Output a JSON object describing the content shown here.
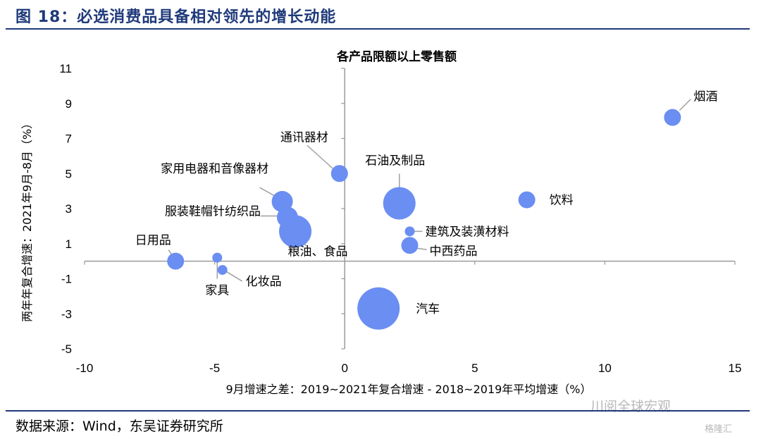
{
  "figure": {
    "title": "图 18：必选消费品具备相对领先的增长动能",
    "source": "数据来源：Wind，东吴证券研究所",
    "watermark": "川阅全球宏观",
    "corner_logo": "格隆汇"
  },
  "colors": {
    "bubble": "#6a8ef2",
    "frame": "#1f3a7a",
    "leader": "#a0a0a0"
  },
  "chart_data": {
    "type": "scatter",
    "title": "各产品限额以上零售额",
    "xlabel": "9月增速之差：2019~2021年复合增速 - 2018~2019年平均增速（%）",
    "ylabel": "两年年复合增速：2021年9月-8月（%）",
    "xlim": [
      -10,
      15
    ],
    "ylim": [
      -5,
      11
    ],
    "xticks": [
      -10,
      -5,
      0,
      5,
      10,
      15
    ],
    "yticks": [
      11,
      9,
      7,
      5,
      3,
      1,
      -1,
      -3,
      -5
    ],
    "points": [
      {
        "name": "烟酒",
        "x": 12.6,
        "y": 8.2,
        "size": "small"
      },
      {
        "name": "饮料",
        "x": 7.0,
        "y": 3.5,
        "size": "small"
      },
      {
        "name": "石油及制品",
        "x": 2.1,
        "y": 3.3,
        "size": "large"
      },
      {
        "name": "通讯器材",
        "x": -0.2,
        "y": 5.0,
        "size": "small"
      },
      {
        "name": "家用电器和音像器材",
        "x": -2.4,
        "y": 3.4,
        "size": "medium"
      },
      {
        "name": "服装鞋帽针纺织品",
        "x": -2.2,
        "y": 2.5,
        "size": "medium"
      },
      {
        "name": "粮油、食品",
        "x": -1.9,
        "y": 1.7,
        "size": "large"
      },
      {
        "name": "建筑及装潢材料",
        "x": 2.5,
        "y": 1.7,
        "size": "tiny"
      },
      {
        "name": "中西药品",
        "x": 2.5,
        "y": 0.9,
        "size": "small"
      },
      {
        "name": "日用品",
        "x": -6.5,
        "y": 0.0,
        "size": "small"
      },
      {
        "name": "家具",
        "x": -4.9,
        "y": 0.2,
        "size": "tiny"
      },
      {
        "name": "化妆品",
        "x": -4.7,
        "y": -0.5,
        "size": "tiny"
      },
      {
        "name": "汽车",
        "x": 1.3,
        "y": -2.7,
        "size": "xlarge"
      }
    ]
  }
}
